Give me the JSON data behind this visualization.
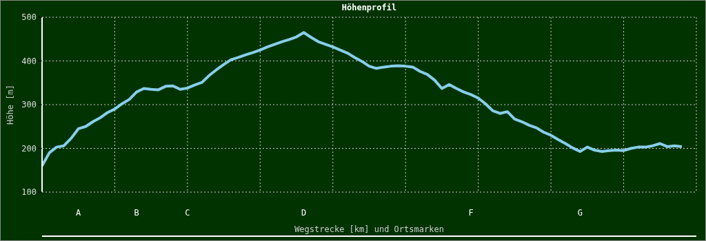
{
  "chart_data": {
    "type": "line",
    "title": "Höhenprofil",
    "xlabel": "Wegstrecke [km] und Ortsmarken",
    "ylabel": "Höhe [m]",
    "categories": [
      null,
      null,
      null,
      null,
      null,
      "A",
      null,
      null,
      null,
      null,
      null,
      null,
      null,
      "B",
      null,
      null,
      null,
      null,
      null,
      null,
      "C",
      null,
      null,
      null,
      null,
      null,
      null,
      null,
      null,
      null,
      null,
      null,
      null,
      null,
      null,
      null,
      "D",
      null,
      null,
      null,
      null,
      null,
      null,
      null,
      null,
      null,
      null,
      null,
      null,
      null,
      null,
      null,
      null,
      null,
      null,
      null,
      null,
      null,
      null,
      "F",
      null,
      null,
      null,
      null,
      null,
      null,
      null,
      null,
      null,
      null,
      null,
      null,
      null,
      null,
      "G",
      null,
      null,
      null,
      null,
      null,
      null,
      null,
      null,
      null,
      null,
      null,
      null,
      null,
      null,
      null,
      null
    ],
    "series": [
      {
        "color": "#87ceeb",
        "values": [
          160,
          190,
          203,
          206,
          223,
          245,
          250,
          261,
          270,
          282,
          290,
          302,
          312,
          329,
          337,
          335,
          334,
          342,
          343,
          335,
          338,
          345,
          351,
          367,
          380,
          392,
          403,
          408,
          414,
          419,
          425,
          432,
          438,
          444,
          449,
          455,
          465,
          454,
          444,
          438,
          432,
          425,
          418,
          408,
          399,
          388,
          383,
          386,
          388,
          389,
          388,
          386,
          376,
          369,
          356,
          337,
          346,
          337,
          329,
          323,
          315,
          302,
          286,
          280,
          284,
          267,
          261,
          253,
          247,
          237,
          230,
          220,
          211,
          201,
          193,
          203,
          196,
          193,
          195,
          196,
          195,
          200,
          203,
          203,
          206,
          211,
          204,
          206,
          204,
          null,
          null
        ]
      }
    ],
    "ylim": [
      100,
      500
    ],
    "yticks": [
      100,
      200,
      300,
      400,
      500
    ],
    "grid": true
  }
}
